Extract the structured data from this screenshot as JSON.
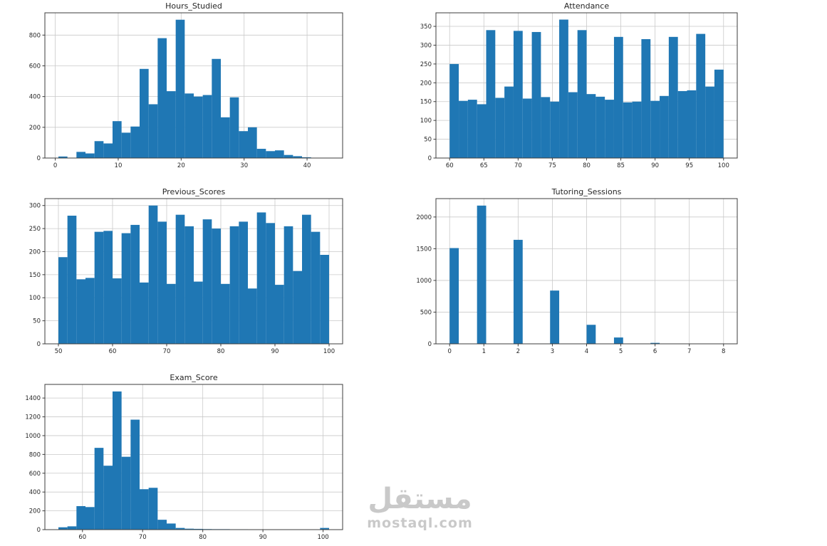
{
  "page": {
    "background": "#ffffff",
    "watermark": {
      "brand_arabic": "مستقل",
      "brand_domain": "mostaql.com",
      "color": "#c9c9c9"
    }
  },
  "style": {
    "bar_color": "#1f77b4",
    "grid_color": "#c9c9c9",
    "axis_color": "#3c3c3c",
    "tick_label_color": "#262626",
    "title_color": "#262626"
  },
  "chart_data": [
    {
      "type": "bar",
      "title": "Hours_Studied",
      "grid": true,
      "bins": {
        "start": 0.5,
        "end": 43.5
      },
      "values": [
        10,
        0,
        40,
        30,
        110,
        95,
        240,
        165,
        205,
        580,
        350,
        780,
        435,
        900,
        420,
        400,
        410,
        645,
        265,
        395,
        175,
        200,
        60,
        45,
        50,
        20,
        12,
        5,
        2,
        2
      ],
      "xlim": [
        -1.65,
        45.65
      ],
      "ylim": [
        0,
        945
      ],
      "xticks": [
        0,
        10,
        20,
        30,
        40
      ],
      "yticks": [
        0,
        200,
        400,
        600,
        800
      ]
    },
    {
      "type": "bar",
      "title": "Attendance",
      "grid": true,
      "bins": {
        "start": 60,
        "end": 100
      },
      "values": [
        250,
        152,
        155,
        143,
        340,
        160,
        190,
        338,
        158,
        335,
        162,
        150,
        368,
        175,
        340,
        170,
        163,
        155,
        322,
        148,
        150,
        316,
        152,
        165,
        322,
        178,
        180,
        330,
        190,
        235
      ],
      "xlim": [
        58,
        102
      ],
      "ylim": [
        0,
        386
      ],
      "xticks": [
        60,
        65,
        70,
        75,
        80,
        85,
        90,
        95,
        100
      ],
      "yticks": [
        0,
        50,
        100,
        150,
        200,
        250,
        300,
        350
      ]
    },
    {
      "type": "bar",
      "title": "Previous_Scores",
      "grid": true,
      "bins": {
        "start": 50,
        "end": 100
      },
      "values": [
        188,
        278,
        140,
        143,
        243,
        245,
        142,
        240,
        258,
        133,
        300,
        265,
        130,
        280,
        255,
        135,
        270,
        250,
        130,
        255,
        265,
        120,
        285,
        262,
        128,
        255,
        158,
        280,
        243,
        193
      ],
      "xlim": [
        47.5,
        102.5
      ],
      "ylim": [
        0,
        315
      ],
      "xticks": [
        50,
        60,
        70,
        80,
        90,
        100
      ],
      "yticks": [
        0,
        50,
        100,
        150,
        200,
        250,
        300
      ]
    },
    {
      "type": "bar",
      "title": "Tutoring_Sessions",
      "grid": true,
      "bins": {
        "start": 0,
        "end": 8
      },
      "values": [
        1510,
        0,
        0,
        2180,
        0,
        0,
        0,
        1640,
        0,
        0,
        0,
        840,
        0,
        0,
        0,
        300,
        0,
        0,
        100,
        0,
        0,
        0,
        15,
        0,
        0,
        0,
        5,
        0,
        0,
        2
      ],
      "xlim": [
        -0.4,
        8.4
      ],
      "ylim": [
        0,
        2290
      ],
      "xticks": [
        0,
        1,
        2,
        3,
        4,
        5,
        6,
        7,
        8
      ],
      "yticks": [
        0,
        500,
        1000,
        1500,
        2000
      ]
    },
    {
      "type": "bar",
      "title": "Exam_Score",
      "grid": true,
      "bins": {
        "start": 56,
        "end": 101
      },
      "values": [
        25,
        35,
        250,
        240,
        870,
        680,
        1470,
        775,
        1170,
        430,
        445,
        105,
        65,
        18,
        10,
        8,
        6,
        5,
        5,
        4,
        4,
        3,
        3,
        3,
        2,
        2,
        2,
        2,
        1,
        18
      ],
      "xlim": [
        53.75,
        103.25
      ],
      "ylim": [
        0,
        1545
      ],
      "xticks": [
        60,
        70,
        80,
        90,
        100
      ],
      "yticks": [
        0,
        200,
        400,
        600,
        800,
        1000,
        1200,
        1400
      ]
    }
  ]
}
